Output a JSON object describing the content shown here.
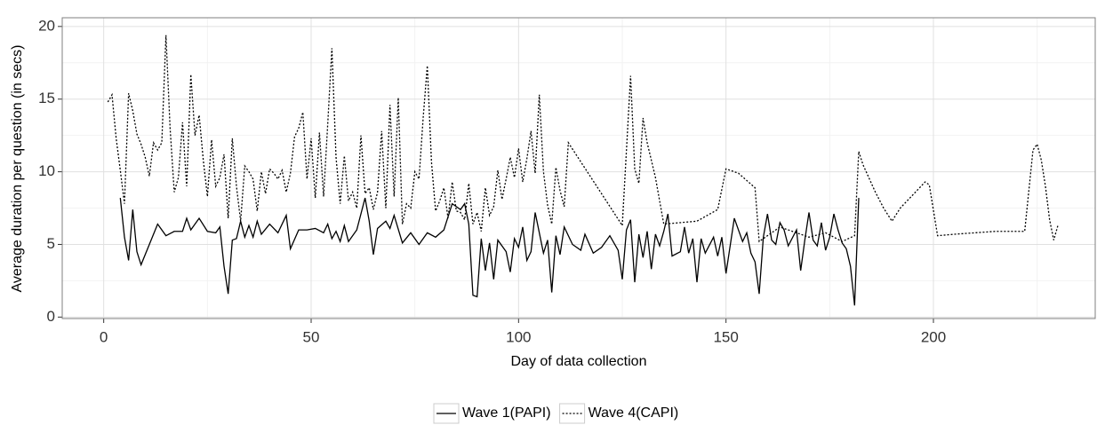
{
  "chart_data": {
    "type": "line",
    "x_label": "Day of data collection",
    "y_label": "Average duration per question (in secs)",
    "xlim": [
      -10,
      239
    ],
    "ylim": [
      -0.1,
      20.6
    ],
    "xticks": [
      0,
      50,
      100,
      150,
      200
    ],
    "yticks": [
      0,
      5,
      10,
      15,
      20
    ],
    "x_minor_ticks": [
      25,
      75,
      125,
      175,
      225
    ],
    "y_minor_ticks": [
      2.5,
      7.5,
      12.5,
      17.5
    ],
    "grid": true,
    "legend_position": "bottom",
    "series": [
      {
        "name": "Wave 1(PAPI)",
        "color": "#000000",
        "linestyle": "solid",
        "x": [
          4,
          5,
          6,
          7,
          8,
          9,
          11,
          13,
          15,
          17,
          19,
          20,
          21,
          23,
          25,
          27,
          28,
          29,
          30,
          31,
          32,
          33,
          34,
          35,
          36,
          37,
          38,
          40,
          42,
          44,
          45,
          47,
          49,
          51,
          53,
          54,
          55,
          56,
          57,
          58,
          59,
          61,
          63,
          64,
          65,
          66,
          68,
          69,
          70,
          72,
          74,
          76,
          78,
          80,
          82,
          84,
          85,
          86,
          87,
          88,
          89,
          90,
          91,
          92,
          93,
          94,
          95,
          97,
          98,
          99,
          100,
          101,
          102,
          103,
          104,
          106,
          107,
          108,
          109,
          110,
          111,
          113,
          115,
          116,
          118,
          120,
          122,
          124,
          125,
          126,
          127,
          128,
          129,
          130,
          131,
          132,
          133,
          134,
          135,
          136,
          137,
          139,
          140,
          141,
          142,
          143,
          144,
          145,
          147,
          148,
          149,
          150,
          152,
          154,
          155,
          156,
          157,
          158,
          159,
          160,
          161,
          162,
          163,
          164,
          165,
          167,
          168,
          169,
          170,
          171,
          172,
          173,
          174,
          175,
          176,
          177,
          178,
          179,
          180,
          181,
          182
        ],
        "values": [
          8.2,
          5.5,
          3.9,
          7.4,
          4.5,
          3.6,
          5.0,
          6.4,
          5.6,
          5.9,
          5.9,
          6.8,
          6.0,
          6.8,
          5.9,
          5.8,
          6.2,
          3.5,
          1.6,
          5.3,
          5.4,
          6.6,
          5.5,
          6.3,
          5.5,
          6.6,
          5.7,
          6.4,
          5.8,
          7.0,
          4.7,
          6.0,
          6.0,
          6.1,
          5.8,
          6.4,
          5.4,
          5.9,
          5.2,
          6.3,
          5.2,
          6.0,
          8.2,
          6.6,
          4.3,
          6.1,
          6.6,
          6.1,
          7.0,
          5.1,
          5.8,
          5.0,
          5.8,
          5.5,
          6.0,
          7.8,
          7.6,
          7.4,
          7.8,
          6.4,
          1.5,
          1.4,
          5.4,
          3.2,
          5.1,
          2.6,
          5.3,
          4.5,
          3.1,
          5.4,
          4.8,
          6.2,
          3.9,
          4.5,
          7.2,
          4.4,
          5.3,
          1.7,
          5.6,
          4.3,
          6.2,
          5.0,
          4.6,
          5.7,
          4.4,
          4.8,
          5.6,
          4.6,
          2.6,
          6.0,
          6.7,
          2.4,
          5.7,
          4.1,
          5.9,
          3.3,
          5.7,
          4.9,
          5.9,
          7.1,
          4.2,
          4.5,
          6.2,
          4.4,
          5.4,
          2.4,
          5.4,
          4.4,
          5.5,
          4.2,
          5.5,
          3.0,
          6.8,
          5.2,
          5.8,
          4.4,
          3.8,
          1.6,
          5.5,
          7.1,
          5.3,
          5.0,
          6.5,
          6.0,
          4.9,
          6.0,
          3.2,
          5.3,
          7.2,
          5.3,
          4.9,
          6.5,
          4.6,
          5.5,
          7.1,
          6.0,
          5.1,
          4.7,
          3.5,
          0.8,
          8.2
        ]
      },
      {
        "name": "Wave 4(CAPI)",
        "color": "#000000",
        "linestyle": "dotted",
        "x": [
          1,
          2,
          3,
          4,
          5,
          6,
          7,
          8,
          9,
          10,
          11,
          12,
          13,
          14,
          15,
          16,
          17,
          18,
          19,
          20,
          21,
          22,
          23,
          24,
          25,
          26,
          27,
          28,
          29,
          30,
          31,
          32,
          33,
          34,
          35,
          36,
          37,
          38,
          39,
          40,
          41,
          42,
          43,
          44,
          45,
          46,
          47,
          48,
          49,
          50,
          51,
          52,
          53,
          54,
          55,
          56,
          57,
          58,
          59,
          60,
          61,
          62,
          63,
          64,
          65,
          66,
          67,
          68,
          69,
          70,
          71,
          72,
          73,
          74,
          75,
          76,
          77,
          78,
          79,
          80,
          81,
          82,
          83,
          84,
          85,
          86,
          87,
          88,
          89,
          90,
          91,
          92,
          93,
          94,
          95,
          96,
          97,
          98,
          99,
          100,
          101,
          102,
          103,
          104,
          105,
          106,
          107,
          108,
          109,
          110,
          111,
          112,
          125,
          127,
          128,
          129,
          130,
          131,
          133,
          135,
          143,
          148,
          150,
          153,
          157,
          158,
          163,
          170,
          174,
          178,
          181,
          182,
          183,
          186,
          188,
          190,
          192,
          198,
          199,
          201,
          205,
          210,
          215,
          220,
          222,
          224,
          225,
          226,
          227,
          228,
          229,
          230
        ],
        "values": [
          14.8,
          15.3,
          12.3,
          10.1,
          7.8,
          15.4,
          14.2,
          12.6,
          11.9,
          11.0,
          9.7,
          12.0,
          11.5,
          12.0,
          19.4,
          13.0,
          8.6,
          9.6,
          13.4,
          9.0,
          16.7,
          12.5,
          13.9,
          10.8,
          8.3,
          12.2,
          9.0,
          9.6,
          11.2,
          6.8,
          12.3,
          9.0,
          6.6,
          10.4,
          10.0,
          9.5,
          7.3,
          10.0,
          8.5,
          10.2,
          9.9,
          9.5,
          10.1,
          8.6,
          9.9,
          12.4,
          13.0,
          14.1,
          9.5,
          12.3,
          8.2,
          12.7,
          8.3,
          13.3,
          18.5,
          11.0,
          7.8,
          11.1,
          8.0,
          8.6,
          7.5,
          12.5,
          8.5,
          8.9,
          7.4,
          8.6,
          12.8,
          7.5,
          14.6,
          8.3,
          15.1,
          6.4,
          7.8,
          7.5,
          10.0,
          9.5,
          13.7,
          17.3,
          10.7,
          7.3,
          8.0,
          8.9,
          6.8,
          9.3,
          7.3,
          7.2,
          6.7,
          9.2,
          6.4,
          7.2,
          5.9,
          8.9,
          7.0,
          7.6,
          10.1,
          8.1,
          9.5,
          11.0,
          9.6,
          11.6,
          9.3,
          10.9,
          12.8,
          9.9,
          15.3,
          10.0,
          7.7,
          6.4,
          10.3,
          8.7,
          7.6,
          12.0,
          6.3,
          16.6,
          10.2,
          9.2,
          13.7,
          12.0,
          9.6,
          6.4,
          6.6,
          7.4,
          10.2,
          9.9,
          8.9,
          5.2,
          6.2,
          5.5,
          5.8,
          5.2,
          5.6,
          11.4,
          10.5,
          8.6,
          7.5,
          6.6,
          7.5,
          9.3,
          9.1,
          5.6,
          5.7,
          5.8,
          5.9,
          5.9,
          5.9,
          11.5,
          11.9,
          10.8,
          9.0,
          6.7,
          5.3,
          6.3
        ]
      }
    ]
  }
}
